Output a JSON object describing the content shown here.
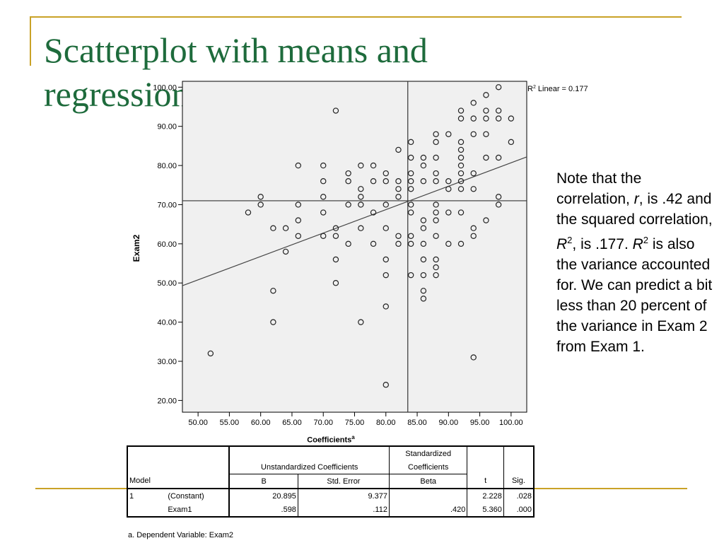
{
  "slide": {
    "title": "Scatterplot with means and regression line",
    "accent_color": "#c9a227",
    "title_color": "#1e6b3c"
  },
  "note": {
    "p1": "Note that the correlation, ",
    "r_symbol": "r",
    "p2": ", is .42 and the squared correlation, ",
    "R_symbol": "R",
    "sup1": "2",
    "p3": ", is .177.  ",
    "R_symbol2": "R",
    "sup2": "2",
    "p4": " is also the variance accounted for.  We can predict a bit less than 20 percent of the variance in Exam 2 from Exam 1."
  },
  "chart_data": {
    "type": "scatter",
    "ylabel": "Exam2",
    "xlabel": "",
    "xlim": [
      47.5,
      102.5
    ],
    "ylim": [
      17.0,
      101.5
    ],
    "x_ticks": [
      "50.00",
      "55.00",
      "60.00",
      "65.00",
      "70.00",
      "75.00",
      "80.00",
      "85.00",
      "90.00",
      "95.00",
      "100.00"
    ],
    "y_ticks": [
      "20.00",
      "30.00",
      "40.00",
      "50.00",
      "60.00",
      "70.00",
      "80.00",
      "90.00",
      "100.00"
    ],
    "annotation_prefix": "R",
    "annotation_sup": "2",
    "annotation_text": " Linear = 0.177",
    "mean_x": 83.5,
    "mean_y": 71.0,
    "regression": {
      "intercept": 20.895,
      "slope": 0.598
    },
    "points": [
      [
        52,
        32
      ],
      [
        58,
        68
      ],
      [
        60,
        72
      ],
      [
        60,
        70
      ],
      [
        62,
        64
      ],
      [
        62,
        48
      ],
      [
        62,
        40
      ],
      [
        64,
        64
      ],
      [
        64,
        58
      ],
      [
        66,
        80
      ],
      [
        66,
        70
      ],
      [
        66,
        66
      ],
      [
        66,
        62
      ],
      [
        70,
        80
      ],
      [
        70,
        76
      ],
      [
        70,
        72
      ],
      [
        70,
        68
      ],
      [
        70,
        62
      ],
      [
        72,
        94
      ],
      [
        72,
        64
      ],
      [
        72,
        62
      ],
      [
        72,
        56
      ],
      [
        72,
        50
      ],
      [
        74,
        78
      ],
      [
        74,
        76
      ],
      [
        74,
        70
      ],
      [
        74,
        60
      ],
      [
        76,
        80
      ],
      [
        76,
        74
      ],
      [
        76,
        72
      ],
      [
        76,
        70
      ],
      [
        76,
        64
      ],
      [
        76,
        40
      ],
      [
        78,
        80
      ],
      [
        78,
        76
      ],
      [
        78,
        68
      ],
      [
        78,
        60
      ],
      [
        80,
        78
      ],
      [
        80,
        76
      ],
      [
        80,
        70
      ],
      [
        80,
        64
      ],
      [
        80,
        56
      ],
      [
        80,
        52
      ],
      [
        80,
        44
      ],
      [
        80,
        24
      ],
      [
        82,
        84
      ],
      [
        82,
        76
      ],
      [
        82,
        74
      ],
      [
        82,
        72
      ],
      [
        82,
        62
      ],
      [
        82,
        60
      ],
      [
        84,
        86
      ],
      [
        84,
        82
      ],
      [
        84,
        78
      ],
      [
        84,
        76
      ],
      [
        84,
        74
      ],
      [
        84,
        70
      ],
      [
        84,
        68
      ],
      [
        84,
        62
      ],
      [
        84,
        60
      ],
      [
        84,
        52
      ],
      [
        86,
        82
      ],
      [
        86,
        80
      ],
      [
        86,
        76
      ],
      [
        86,
        66
      ],
      [
        86,
        64
      ],
      [
        86,
        60
      ],
      [
        86,
        56
      ],
      [
        86,
        52
      ],
      [
        86,
        48
      ],
      [
        86,
        46
      ],
      [
        88,
        88
      ],
      [
        88,
        86
      ],
      [
        88,
        82
      ],
      [
        88,
        78
      ],
      [
        88,
        76
      ],
      [
        88,
        70
      ],
      [
        88,
        68
      ],
      [
        88,
        66
      ],
      [
        88,
        62
      ],
      [
        88,
        56
      ],
      [
        88,
        54
      ],
      [
        88,
        52
      ],
      [
        90,
        88
      ],
      [
        90,
        76
      ],
      [
        90,
        74
      ],
      [
        90,
        68
      ],
      [
        90,
        60
      ],
      [
        92,
        94
      ],
      [
        92,
        92
      ],
      [
        92,
        86
      ],
      [
        92,
        84
      ],
      [
        92,
        82
      ],
      [
        92,
        80
      ],
      [
        92,
        78
      ],
      [
        92,
        76
      ],
      [
        92,
        74
      ],
      [
        92,
        68
      ],
      [
        92,
        60
      ],
      [
        94,
        96
      ],
      [
        94,
        92
      ],
      [
        94,
        88
      ],
      [
        94,
        78
      ],
      [
        94,
        74
      ],
      [
        94,
        64
      ],
      [
        94,
        62
      ],
      [
        94,
        31
      ],
      [
        96,
        98
      ],
      [
        96,
        94
      ],
      [
        96,
        92
      ],
      [
        96,
        88
      ],
      [
        96,
        82
      ],
      [
        96,
        66
      ],
      [
        98,
        100
      ],
      [
        98,
        94
      ],
      [
        98,
        92
      ],
      [
        98,
        82
      ],
      [
        98,
        72
      ],
      [
        98,
        70
      ],
      [
        100,
        92
      ],
      [
        100,
        86
      ]
    ]
  },
  "coefficients": {
    "caption": "Coefficients",
    "caption_sup": "a",
    "header": {
      "standardized": "Standardized",
      "coefficients": "Coefficients",
      "unstandardized": "Unstandardized Coefficients",
      "model": "Model",
      "b": "B",
      "std_error": "Std. Error",
      "beta": "Beta",
      "t": "t",
      "sig": "Sig."
    },
    "rows": [
      {
        "model": "1",
        "term": "(Constant)",
        "b": "20.895",
        "se": "9.377",
        "beta": "",
        "t": "2.228",
        "sig": ".028"
      },
      {
        "model": "",
        "term": "Exam1",
        "b": ".598",
        "se": ".112",
        "beta": ".420",
        "t": "5.360",
        "sig": ".000"
      }
    ],
    "footnote": "a. Dependent Variable: Exam2"
  }
}
